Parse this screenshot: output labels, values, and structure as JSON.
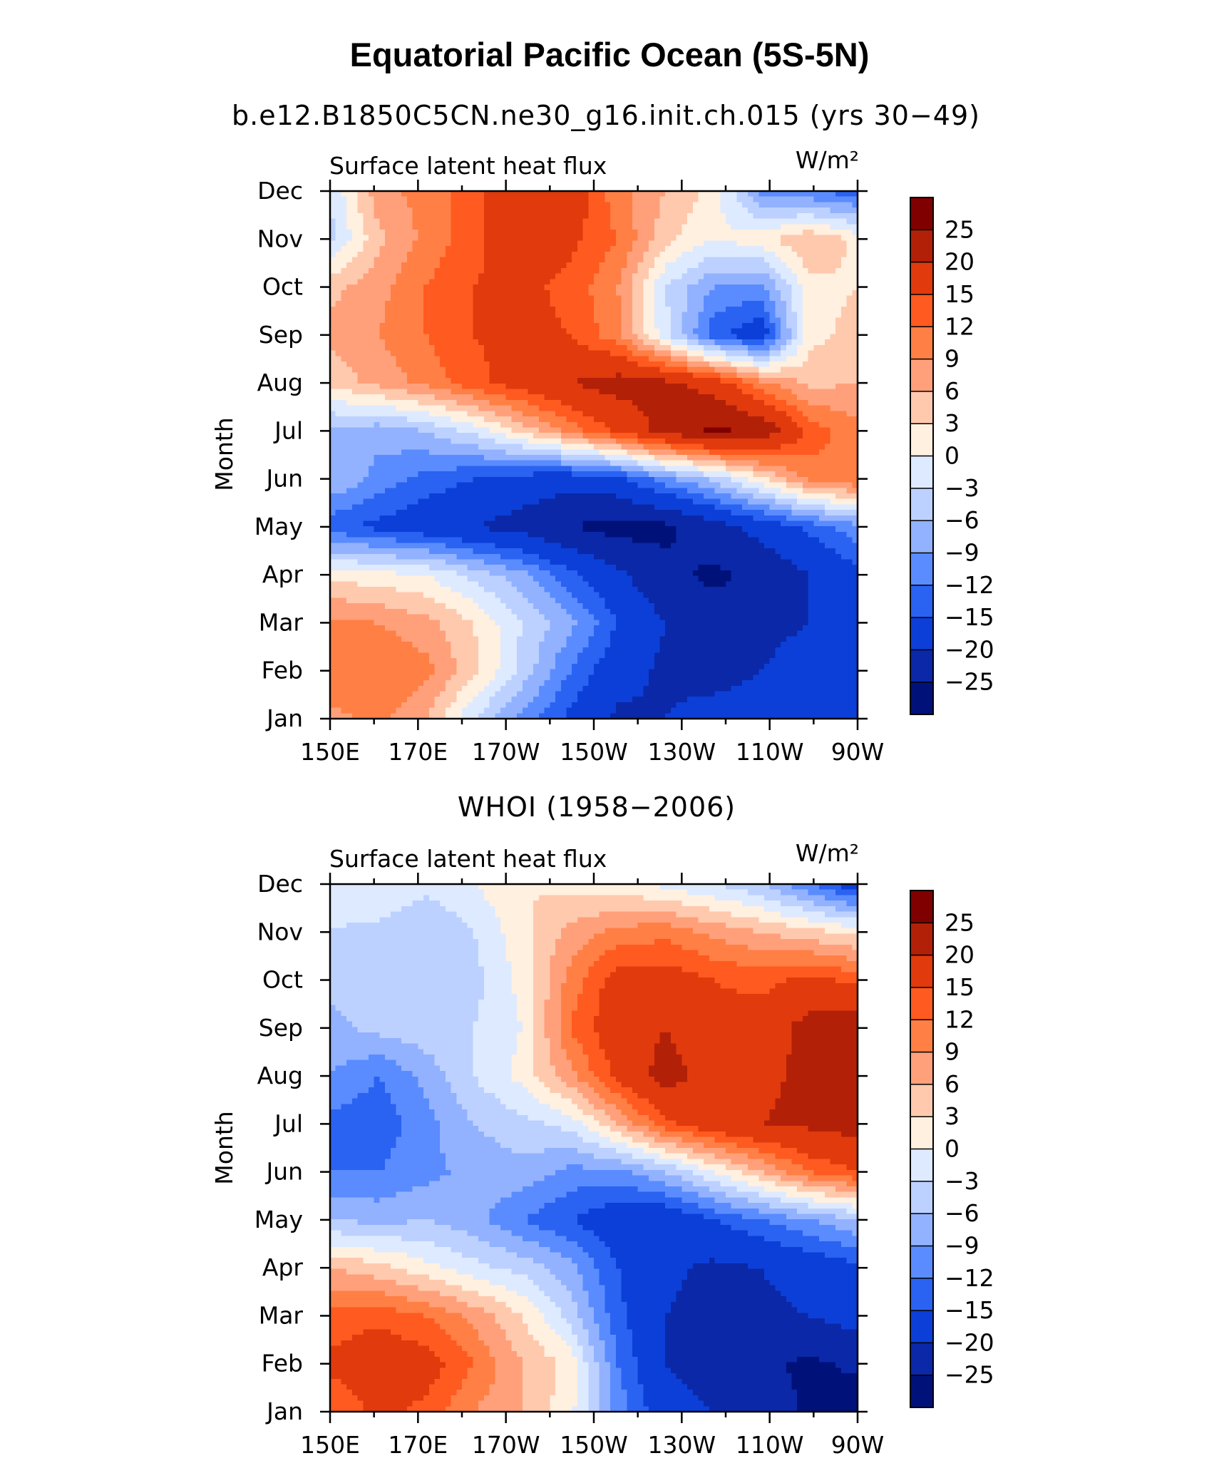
{
  "figure": {
    "title": "Equatorial Pacific Ocean (5S-5N)"
  },
  "colorbar": {
    "labels": [
      "25",
      "20",
      "15",
      "12",
      "9",
      "6",
      "3",
      "0",
      "−3",
      "−6",
      "−9",
      "−12",
      "−15",
      "−20",
      "−25"
    ],
    "colors": [
      "#800000",
      "#b22008",
      "#e13a0c",
      "#ff5a1f",
      "#ff7f45",
      "#ffa07a",
      "#ffc9ae",
      "#fff0e0",
      "#deeaff",
      "#bcd1ff",
      "#92b2ff",
      "#5a8cff",
      "#2a62f2",
      "#0c3fd8",
      "#0a28a8",
      "#00127a"
    ]
  },
  "chart_data": [
    {
      "type": "heatmap",
      "subtitle": "b.e12.B1850C5CN.ne30_g16.init.ch.015 (yrs 30−49)",
      "left_label": "Surface latent heat flux",
      "units": "W/m²",
      "ylabel": "Month",
      "xlabel": "",
      "x_ticks": [
        "150E",
        "170E",
        "170W",
        "150W",
        "130W",
        "110W",
        "90W"
      ],
      "y_ticks": [
        "Jan",
        "Feb",
        "Mar",
        "Apr",
        "May",
        "Jun",
        "Jul",
        "Aug",
        "Sep",
        "Oct",
        "Nov",
        "Dec"
      ],
      "x_lon": [
        150,
        170,
        190,
        210,
        230,
        250,
        270
      ],
      "grid": [
        [
          8,
          10,
          6,
          -3,
          -10,
          -16,
          -21,
          -20,
          -18,
          -17,
          -15,
          -20
        ],
        [
          12,
          12,
          10,
          4,
          -4,
          -12,
          -18,
          -21,
          -22,
          -20,
          -17,
          -18
        ],
        [
          10,
          9,
          7,
          3,
          -3,
          -8,
          -15,
          -20,
          -23,
          -22,
          -20,
          -17
        ],
        [
          2,
          1,
          0,
          -4,
          -8,
          -14,
          -19,
          -24,
          -26,
          -24,
          -20,
          -16
        ],
        [
          -14,
          -16,
          -18,
          -20,
          -22,
          -25,
          -27,
          -26,
          -22,
          -18,
          -14,
          -10
        ],
        [
          -6,
          -10,
          -13,
          -15,
          -17,
          -18,
          -16,
          -10,
          -5,
          2,
          10,
          12
        ],
        [
          -7,
          -8,
          -6,
          -2,
          4,
          10,
          16,
          22,
          26,
          24,
          14,
          10
        ],
        [
          4,
          7,
          10,
          14,
          17,
          20,
          22,
          21,
          18,
          10,
          5,
          6
        ],
        [
          7,
          9,
          12,
          15,
          16,
          15,
          10,
          -2,
          -14,
          -18,
          2,
          4
        ],
        [
          5,
          8,
          12,
          15,
          16,
          14,
          9,
          -3,
          -9,
          -10,
          2,
          3
        ],
        [
          -4,
          5,
          10,
          14,
          18,
          16,
          12,
          4,
          0,
          2,
          6,
          2
        ],
        [
          -3,
          8,
          10,
          14,
          18,
          18,
          10,
          6,
          2,
          -10,
          -12,
          -14
        ]
      ]
    },
    {
      "type": "heatmap",
      "subtitle": "WHOI (1958−2006)",
      "left_label": "Surface latent heat flux",
      "units": "W/m²",
      "ylabel": "Month",
      "xlabel": "",
      "x_ticks": [
        "150E",
        "170E",
        "170W",
        "150W",
        "130W",
        "110W",
        "90W"
      ],
      "y_ticks": [
        "Jan",
        "Feb",
        "Mar",
        "Apr",
        "May",
        "Jun",
        "Jul",
        "Aug",
        "Sep",
        "Oct",
        "Nov",
        "Dec"
      ],
      "x_lon": [
        150,
        170,
        190,
        210,
        230,
        250,
        270
      ],
      "grid": [
        [
          12,
          16,
          14,
          9,
          6,
          1,
          -10,
          -18,
          -20,
          -22,
          -26,
          -28
        ],
        [
          16,
          18,
          17,
          12,
          6,
          2,
          -12,
          -20,
          -22,
          -24,
          -26,
          -24
        ],
        [
          13,
          14,
          12,
          8,
          3,
          -4,
          -14,
          -20,
          -22,
          -21,
          -20,
          -18
        ],
        [
          6,
          4,
          1,
          -2,
          -4,
          -8,
          -15,
          -19,
          -21,
          -20,
          -18,
          -16
        ],
        [
          -6,
          -7,
          -6,
          -8,
          -12,
          -15,
          -18,
          -19,
          -15,
          -12,
          -9,
          -6
        ],
        [
          -12,
          -12,
          -10,
          -8,
          -7,
          -10,
          -10,
          -6,
          0,
          6,
          12,
          15
        ],
        [
          -13,
          -14,
          -10,
          -6,
          -4,
          -2,
          6,
          14,
          18,
          20,
          21,
          22
        ],
        [
          -9,
          -12,
          -8,
          -3,
          1,
          8,
          16,
          22,
          18,
          19,
          21,
          22
        ],
        [
          -7,
          -5,
          -4,
          -3,
          0,
          12,
          18,
          20,
          16,
          17,
          22,
          24
        ],
        [
          -5,
          -3,
          -5,
          -4,
          1,
          10,
          17,
          17,
          15,
          14,
          16,
          14
        ],
        [
          -3,
          -4,
          -6,
          -3,
          2,
          7,
          10,
          11,
          8,
          6,
          4,
          2
        ],
        [
          -1,
          0,
          -2,
          0,
          3,
          2,
          1,
          -1,
          -3,
          -6,
          -12,
          -18
        ]
      ]
    }
  ]
}
